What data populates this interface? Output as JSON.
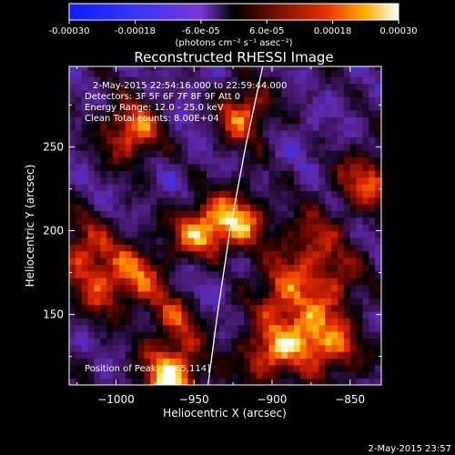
{
  "chart_data": {
    "type": "heatmap",
    "title": "Reconstructed RHESSI Image",
    "xlabel": "Heliocentric X (arcsec)",
    "ylabel": "Heliocentric Y (arcsec)",
    "xlim": [
      -1030,
      -830
    ],
    "ylim": [
      108,
      298
    ],
    "xticks": [
      -1000,
      -950,
      -900,
      -850
    ],
    "xtick_labels": [
      "−1000",
      "−950",
      "−900",
      "−850"
    ],
    "yticks": [
      150,
      200,
      250
    ],
    "ytick_labels": [
      "150",
      "200",
      "250"
    ],
    "colorbar": {
      "range": [
        -0.0003,
        0.0003
      ],
      "tick_values": [
        -0.0003,
        -0.00018,
        -6e-05,
        6e-05,
        0.00018,
        0.0003
      ],
      "tick_labels": [
        "-0.00030",
        "-0.00018",
        "-6.0e-05",
        "6.0e-05",
        "0.00018",
        "0.00030"
      ],
      "units_text": "(photons cm⁻² s⁻¹ asec⁻²)"
    },
    "annotations": [
      "2-May-2015 22:54:16.000 to 22:59:44.000",
      "Detectors: 3F 5F 6F 7F 8F 9F Att 0",
      "Energy Range: 12.0 - 25.0 keV",
      "Clean     Total counts: 8.00E+04",
      "Position of Peak: [-965,114]"
    ],
    "limb_curve": [
      [
        -941,
        108
      ],
      [
        -935,
        150
      ],
      [
        -927,
        200
      ],
      [
        -917,
        250
      ],
      [
        -906,
        298
      ]
    ],
    "hotspots": [
      {
        "x": -990,
        "y": 260,
        "value": 0.00022
      },
      {
        "x": -945,
        "y": 200,
        "value": 0.00024
      },
      {
        "x": -920,
        "y": 207,
        "value": 0.00018
      },
      {
        "x": -920,
        "y": 270,
        "value": 0.0002
      },
      {
        "x": -965,
        "y": 114,
        "value": 0.0003
      },
      {
        "x": -1020,
        "y": 190,
        "value": 0.00014
      },
      {
        "x": -1010,
        "y": 165,
        "value": 0.0001
      },
      {
        "x": -985,
        "y": 175,
        "value": 0.00014
      },
      {
        "x": -960,
        "y": 150,
        "value": 0.00012
      },
      {
        "x": -895,
        "y": 165,
        "value": 0.00015
      },
      {
        "x": -880,
        "y": 140,
        "value": 0.00018
      },
      {
        "x": -860,
        "y": 130,
        "value": 0.00014
      },
      {
        "x": -840,
        "y": 230,
        "value": 0.00016
      },
      {
        "x": -875,
        "y": 195,
        "value": 0.00011
      },
      {
        "x": -905,
        "y": 125,
        "value": 0.00016
      },
      {
        "x": -860,
        "y": 170,
        "value": 0.00012
      }
    ],
    "coldspots": [
      {
        "x": -945,
        "y": 275,
        "value": -0.00016
      },
      {
        "x": -880,
        "y": 260,
        "value": -0.00012
      },
      {
        "x": -1010,
        "y": 220,
        "value": -0.0001
      },
      {
        "x": -955,
        "y": 230,
        "value": -0.00012
      },
      {
        "x": -945,
        "y": 170,
        "value": -0.0002
      },
      {
        "x": -850,
        "y": 285,
        "value": -0.0001
      },
      {
        "x": -900,
        "y": 235,
        "value": -0.0001
      }
    ]
  },
  "timestamp": "2-May-2015 23:57"
}
